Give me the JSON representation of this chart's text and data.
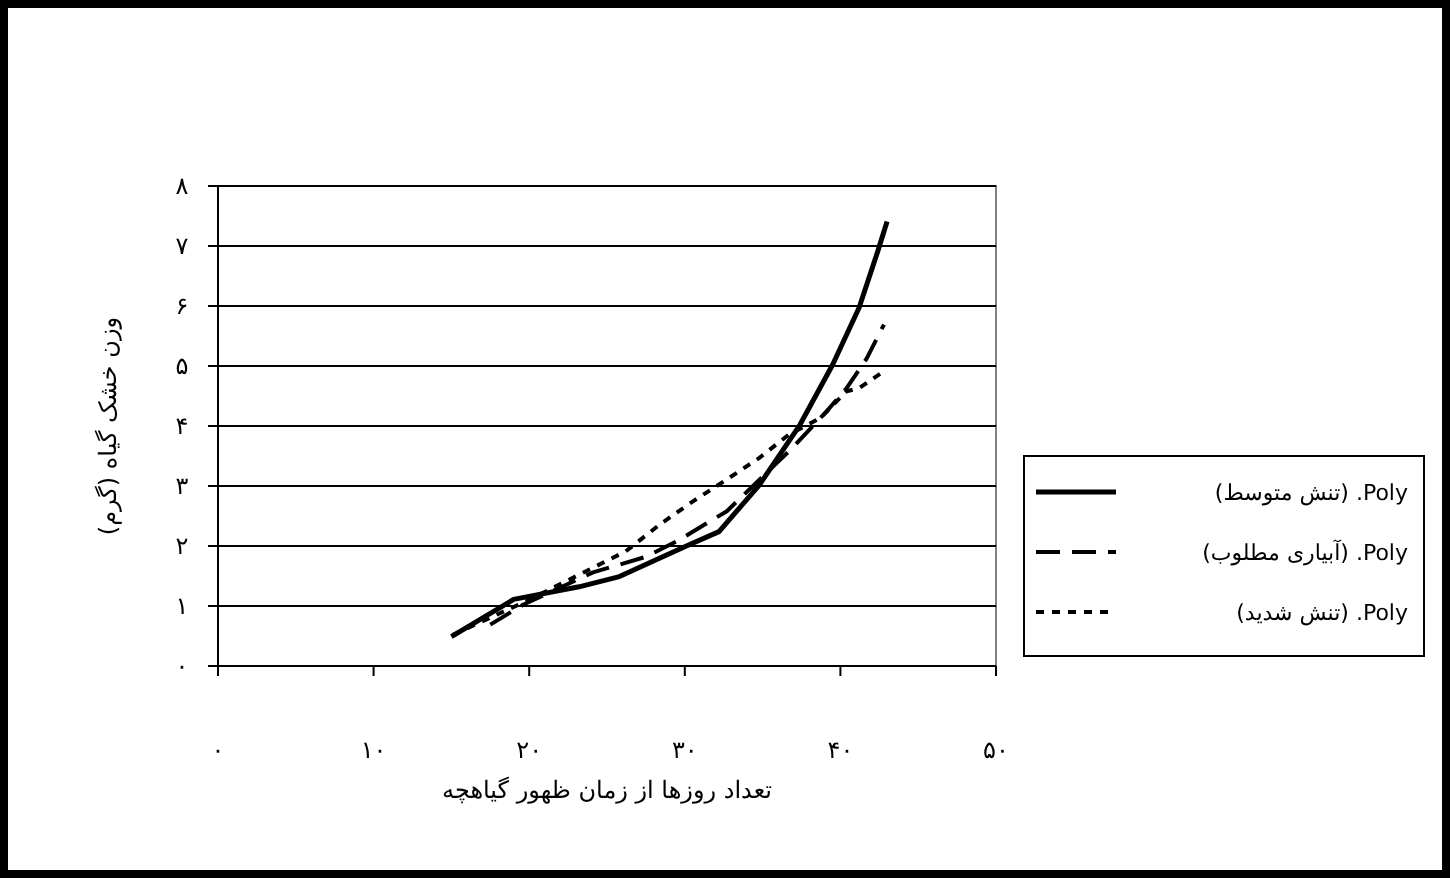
{
  "chart_data": {
    "type": "line",
    "xlabel": "تعداد روزها از زمان ظهور گیاهچه",
    "ylabel": "وزن خشک گیاه (گرم)",
    "xlim": [
      0,
      50
    ],
    "xticks": [
      {
        "value": 0,
        "label": "۰"
      },
      {
        "value": 10,
        "label": "۱۰"
      },
      {
        "value": 20,
        "label": "۲۰"
      },
      {
        "value": 30,
        "label": "۳۰"
      },
      {
        "value": 40,
        "label": "۴۰"
      },
      {
        "value": 50,
        "label": "۵۰"
      }
    ],
    "ylim": [
      0,
      8
    ],
    "yticks": [
      {
        "value": 0,
        "label": "۰"
      },
      {
        "value": 1,
        "label": "۱"
      },
      {
        "value": 2,
        "label": "۲"
      },
      {
        "value": 3,
        "label": "۳"
      },
      {
        "value": 4,
        "label": "۴"
      },
      {
        "value": 5,
        "label": "۵"
      },
      {
        "value": 6,
        "label": "۶"
      },
      {
        "value": 7,
        "label": "۷"
      },
      {
        "value": 8,
        "label": "۸"
      }
    ],
    "grid": "y",
    "legend": "right",
    "marker": "none",
    "series": [
      {
        "name": "Poly. (تنش متوسط)",
        "color": "#000000",
        "line_style": "solid",
        "x": [
          15.0,
          19.0,
          23.2,
          25.8,
          30.1,
          32.2,
          34.8,
          37.4,
          39.5,
          41.2,
          42.4,
          43.0
        ],
        "values": [
          0.49,
          1.11,
          1.32,
          1.49,
          2.0,
          2.24,
          3.02,
          4.02,
          5.02,
          5.97,
          6.91,
          7.41
        ]
      },
      {
        "name": "Poly. (آبیاری مطلوب)",
        "color": "#000000",
        "line_style": "dashed",
        "x": [
          17.5,
          19.6,
          24.1,
          27.5,
          29.5,
          32.7,
          36.9,
          39.1,
          40.4,
          41.7,
          42.8
        ],
        "values": [
          0.69,
          1.02,
          1.56,
          1.82,
          2.08,
          2.58,
          3.63,
          4.24,
          4.63,
          5.13,
          5.69
        ]
      },
      {
        "name": "Poly. (تنش شدید)",
        "color": "#000000",
        "line_style": "dotted",
        "x": [
          15.1,
          19.8,
          26.2,
          28.4,
          30.5,
          32.7,
          34.8,
          36.7,
          38.7,
          40.4,
          41.2,
          42.9
        ],
        "values": [
          0.52,
          1.08,
          1.91,
          2.36,
          2.74,
          3.11,
          3.47,
          3.86,
          4.13,
          4.58,
          4.63,
          4.93
        ]
      }
    ]
  }
}
